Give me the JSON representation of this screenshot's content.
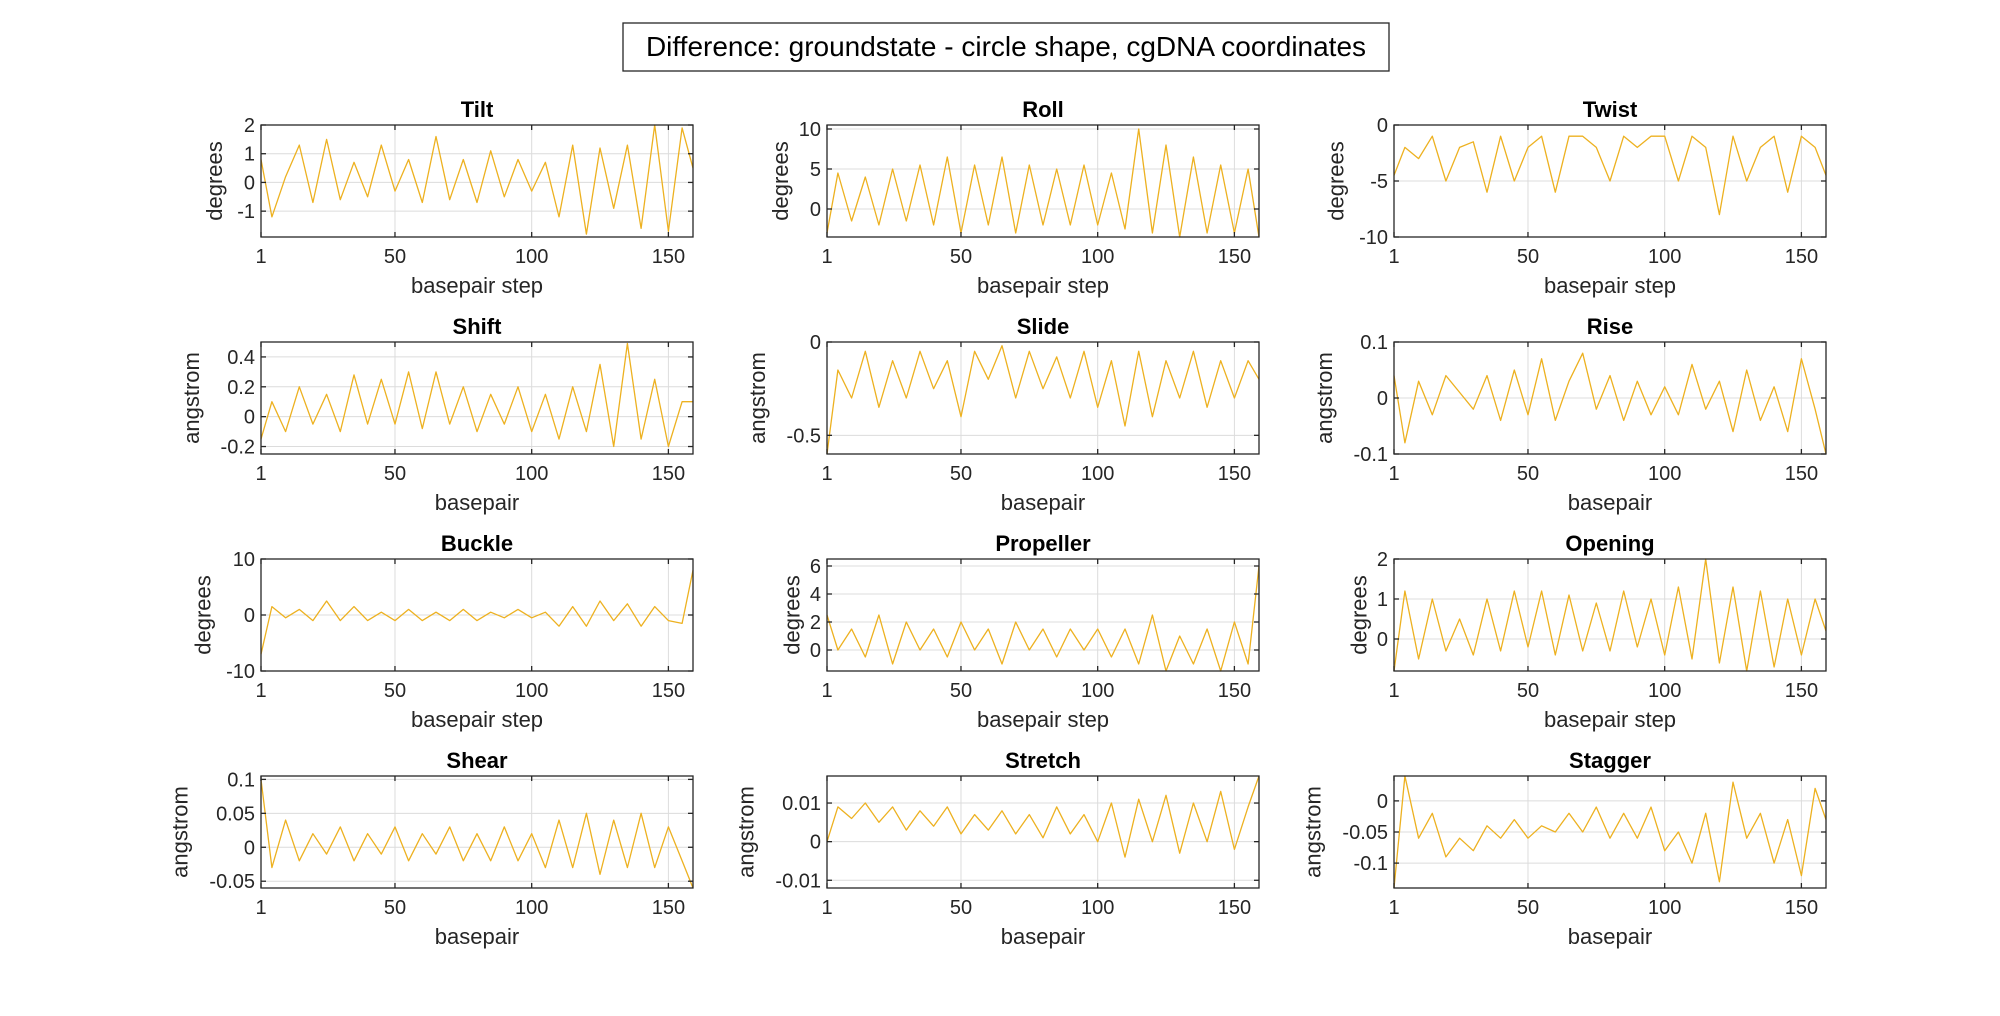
{
  "figure_title": "Difference: groundstate - circle shape, cgDNA coordinates",
  "line_color": "#EDB120",
  "chart_data": [
    {
      "type": "line",
      "title": "Tilt",
      "xlabel": "basepair step",
      "ylabel": "degrees",
      "xlim": [
        1,
        159
      ],
      "ylim": [
        -1.9,
        2
      ],
      "xticks": [
        1,
        50,
        100,
        150
      ],
      "yticks": [
        -1,
        0,
        1,
        2
      ],
      "grid": true,
      "x": [
        1,
        5,
        10,
        15,
        20,
        25,
        30,
        35,
        40,
        45,
        50,
        55,
        60,
        65,
        70,
        75,
        80,
        85,
        90,
        95,
        100,
        105,
        110,
        115,
        120,
        125,
        130,
        135,
        140,
        145,
        150,
        155,
        159
      ],
      "y": [
        0.8,
        -1.2,
        0.2,
        1.3,
        -0.7,
        1.5,
        -0.6,
        0.7,
        -0.5,
        1.3,
        -0.3,
        0.8,
        -0.7,
        1.6,
        -0.6,
        0.8,
        -0.7,
        1.1,
        -0.5,
        0.8,
        -0.3,
        0.7,
        -1.2,
        1.3,
        -1.8,
        1.2,
        -0.9,
        1.3,
        -1.6,
        2.0,
        -1.7,
        1.9,
        0.5
      ]
    },
    {
      "type": "line",
      "title": "Roll",
      "xlabel": "basepair step",
      "ylabel": "degrees",
      "xlim": [
        1,
        159
      ],
      "ylim": [
        -3.5,
        10.5
      ],
      "xticks": [
        1,
        50,
        100,
        150
      ],
      "yticks": [
        0,
        5,
        10
      ],
      "grid": true,
      "x": [
        1,
        5,
        10,
        15,
        20,
        25,
        30,
        35,
        40,
        45,
        50,
        55,
        60,
        65,
        70,
        75,
        80,
        85,
        90,
        95,
        100,
        105,
        110,
        115,
        120,
        125,
        130,
        135,
        140,
        145,
        150,
        155,
        159
      ],
      "y": [
        -3,
        4.5,
        -1.5,
        4,
        -2,
        5,
        -1.5,
        5.5,
        -2,
        6.5,
        -3,
        5.5,
        -2,
        6.5,
        -3,
        5.5,
        -2,
        5,
        -2,
        5.5,
        -2,
        4.5,
        -2.5,
        10,
        -3,
        8,
        -3.5,
        6.5,
        -3,
        5.5,
        -3,
        5,
        -3.5
      ]
    },
    {
      "type": "line",
      "title": "Twist",
      "xlabel": "basepair step",
      "ylabel": "degrees",
      "xlim": [
        1,
        159
      ],
      "ylim": [
        -10,
        0
      ],
      "xticks": [
        1,
        50,
        100,
        150
      ],
      "yticks": [
        -10,
        -5,
        0
      ],
      "grid": true,
      "x": [
        1,
        5,
        10,
        15,
        20,
        25,
        30,
        35,
        40,
        45,
        50,
        55,
        60,
        65,
        70,
        75,
        80,
        85,
        90,
        95,
        100,
        105,
        110,
        115,
        120,
        125,
        130,
        135,
        140,
        145,
        150,
        155,
        159
      ],
      "y": [
        -4.5,
        -2,
        -3,
        -1,
        -5,
        -2,
        -1.5,
        -6,
        -1,
        -5,
        -2,
        -1,
        -6,
        -1,
        -1,
        -2,
        -5,
        -1,
        -2,
        -1,
        -1,
        -5,
        -1,
        -2,
        -8,
        -1,
        -5,
        -2,
        -1,
        -6,
        -1,
        -2,
        -4.5
      ]
    },
    {
      "type": "line",
      "title": "Shift",
      "xlabel": "basepair",
      "ylabel": "angstrom",
      "xlim": [
        1,
        159
      ],
      "ylim": [
        -0.25,
        0.5
      ],
      "xticks": [
        1,
        50,
        100,
        150
      ],
      "yticks": [
        -0.2,
        0,
        0.2,
        0.4
      ],
      "grid": true,
      "x": [
        1,
        5,
        10,
        15,
        20,
        25,
        30,
        35,
        40,
        45,
        50,
        55,
        60,
        65,
        70,
        75,
        80,
        85,
        90,
        95,
        100,
        105,
        110,
        115,
        120,
        125,
        130,
        135,
        140,
        145,
        150,
        155,
        159
      ],
      "y": [
        -0.15,
        0.1,
        -0.1,
        0.2,
        -0.05,
        0.15,
        -0.1,
        0.28,
        -0.05,
        0.25,
        -0.05,
        0.3,
        -0.08,
        0.3,
        -0.05,
        0.2,
        -0.1,
        0.15,
        -0.05,
        0.2,
        -0.1,
        0.15,
        -0.15,
        0.2,
        -0.1,
        0.35,
        -0.2,
        0.49,
        -0.15,
        0.25,
        -0.2,
        0.1,
        0.1
      ]
    },
    {
      "type": "line",
      "title": "Slide",
      "xlabel": "basepair",
      "ylabel": "angstrom",
      "xlim": [
        1,
        159
      ],
      "ylim": [
        -0.6,
        0
      ],
      "xticks": [
        1,
        50,
        100,
        150
      ],
      "yticks": [
        -0.5,
        0
      ],
      "grid": true,
      "x": [
        1,
        5,
        10,
        15,
        20,
        25,
        30,
        35,
        40,
        45,
        50,
        55,
        60,
        65,
        70,
        75,
        80,
        85,
        90,
        95,
        100,
        105,
        110,
        115,
        120,
        125,
        130,
        135,
        140,
        145,
        150,
        155,
        159
      ],
      "y": [
        -0.6,
        -0.15,
        -0.3,
        -0.05,
        -0.35,
        -0.1,
        -0.3,
        -0.05,
        -0.25,
        -0.1,
        -0.4,
        -0.05,
        -0.2,
        -0.02,
        -0.3,
        -0.05,
        -0.25,
        -0.08,
        -0.3,
        -0.05,
        -0.35,
        -0.1,
        -0.45,
        -0.05,
        -0.4,
        -0.1,
        -0.3,
        -0.05,
        -0.35,
        -0.1,
        -0.3,
        -0.1,
        -0.2
      ]
    },
    {
      "type": "line",
      "title": "Rise",
      "xlabel": "basepair",
      "ylabel": "angstrom",
      "xlim": [
        1,
        159
      ],
      "ylim": [
        -0.1,
        0.1
      ],
      "xticks": [
        1,
        50,
        100,
        150
      ],
      "yticks": [
        -0.1,
        0,
        0.1
      ],
      "grid": true,
      "x": [
        1,
        5,
        10,
        15,
        20,
        25,
        30,
        35,
        40,
        45,
        50,
        55,
        60,
        65,
        70,
        75,
        80,
        85,
        90,
        95,
        100,
        105,
        110,
        115,
        120,
        125,
        130,
        135,
        140,
        145,
        150,
        155,
        159
      ],
      "y": [
        0.04,
        -0.08,
        0.03,
        -0.03,
        0.04,
        0.01,
        -0.02,
        0.04,
        -0.04,
        0.05,
        -0.03,
        0.07,
        -0.04,
        0.03,
        0.08,
        -0.02,
        0.04,
        -0.04,
        0.03,
        -0.03,
        0.02,
        -0.03,
        0.06,
        -0.02,
        0.03,
        -0.06,
        0.05,
        -0.04,
        0.02,
        -0.06,
        0.07,
        -0.02,
        -0.1
      ]
    },
    {
      "type": "line",
      "title": "Buckle",
      "xlabel": "basepair step",
      "ylabel": "degrees",
      "xlim": [
        1,
        159
      ],
      "ylim": [
        -10,
        10
      ],
      "xticks": [
        1,
        50,
        100,
        150
      ],
      "yticks": [
        -10,
        0,
        10
      ],
      "grid": true,
      "x": [
        1,
        5,
        10,
        15,
        20,
        25,
        30,
        35,
        40,
        45,
        50,
        55,
        60,
        65,
        70,
        75,
        80,
        85,
        90,
        95,
        100,
        105,
        110,
        115,
        120,
        125,
        130,
        135,
        140,
        145,
        150,
        155,
        159
      ],
      "y": [
        -7,
        1.5,
        -0.5,
        1,
        -1,
        2.5,
        -1,
        1.5,
        -1,
        0.5,
        -1,
        1,
        -1,
        0.5,
        -1,
        1,
        -1,
        0.5,
        -0.5,
        1,
        -0.5,
        0.5,
        -2,
        1.5,
        -2,
        2.5,
        -1,
        2,
        -2,
        1.5,
        -1,
        -1.5,
        8
      ]
    },
    {
      "type": "line",
      "title": "Propeller",
      "xlabel": "basepair step",
      "ylabel": "degrees",
      "xlim": [
        1,
        159
      ],
      "ylim": [
        -1.5,
        6.5
      ],
      "xticks": [
        1,
        50,
        100,
        150
      ],
      "yticks": [
        0,
        2,
        4,
        6
      ],
      "grid": true,
      "x": [
        1,
        5,
        10,
        15,
        20,
        25,
        30,
        35,
        40,
        45,
        50,
        55,
        60,
        65,
        70,
        75,
        80,
        85,
        90,
        95,
        100,
        105,
        110,
        115,
        120,
        125,
        130,
        135,
        140,
        145,
        150,
        155,
        159
      ],
      "y": [
        2.5,
        0,
        1.5,
        -0.5,
        2.5,
        -1,
        2,
        0,
        1.5,
        -0.5,
        2,
        0,
        1.5,
        -1,
        2,
        0,
        1.5,
        -0.5,
        1.5,
        0,
        1.5,
        -0.5,
        1.5,
        -1,
        2.5,
        -1.5,
        1,
        -1,
        1.5,
        -1.5,
        2,
        -1,
        6
      ]
    },
    {
      "type": "line",
      "title": "Opening",
      "xlabel": "basepair step",
      "ylabel": "degrees",
      "xlim": [
        1,
        159
      ],
      "ylim": [
        -0.8,
        2
      ],
      "xticks": [
        1,
        50,
        100,
        150
      ],
      "yticks": [
        0,
        1,
        2
      ],
      "grid": true,
      "x": [
        1,
        5,
        10,
        15,
        20,
        25,
        30,
        35,
        40,
        45,
        50,
        55,
        60,
        65,
        70,
        75,
        80,
        85,
        90,
        95,
        100,
        105,
        110,
        115,
        120,
        125,
        130,
        135,
        140,
        145,
        150,
        155,
        159
      ],
      "y": [
        -0.8,
        1.2,
        -0.5,
        1,
        -0.3,
        0.5,
        -0.4,
        1,
        -0.3,
        1.2,
        -0.2,
        1.2,
        -0.4,
        1.1,
        -0.3,
        0.9,
        -0.3,
        1.2,
        -0.2,
        1,
        -0.4,
        1.3,
        -0.5,
        2,
        -0.6,
        1.3,
        -0.8,
        1.2,
        -0.7,
        1,
        -0.4,
        1,
        0.2
      ]
    },
    {
      "type": "line",
      "title": "Shear",
      "xlabel": "basepair",
      "ylabel": "angstrom",
      "xlim": [
        1,
        159
      ],
      "ylim": [
        -0.06,
        0.105
      ],
      "xticks": [
        1,
        50,
        100,
        150
      ],
      "yticks": [
        -0.05,
        0,
        0.05,
        0.1
      ],
      "grid": true,
      "x": [
        1,
        5,
        10,
        15,
        20,
        25,
        30,
        35,
        40,
        45,
        50,
        55,
        60,
        65,
        70,
        75,
        80,
        85,
        90,
        95,
        100,
        105,
        110,
        115,
        120,
        125,
        130,
        135,
        140,
        145,
        150,
        155,
        159
      ],
      "y": [
        0.1,
        -0.03,
        0.04,
        -0.02,
        0.02,
        -0.01,
        0.03,
        -0.02,
        0.02,
        -0.01,
        0.03,
        -0.02,
        0.02,
        -0.01,
        0.03,
        -0.02,
        0.02,
        -0.02,
        0.03,
        -0.02,
        0.02,
        -0.03,
        0.04,
        -0.03,
        0.05,
        -0.04,
        0.04,
        -0.03,
        0.05,
        -0.03,
        0.03,
        -0.02,
        -0.06
      ]
    },
    {
      "type": "line",
      "title": "Stretch",
      "xlabel": "basepair",
      "ylabel": "angstrom",
      "xlim": [
        1,
        159
      ],
      "ylim": [
        -0.012,
        0.017
      ],
      "xticks": [
        1,
        50,
        100,
        150
      ],
      "yticks": [
        -0.01,
        0,
        0.01
      ],
      "grid": true,
      "x": [
        1,
        5,
        10,
        15,
        20,
        25,
        30,
        35,
        40,
        45,
        50,
        55,
        60,
        65,
        70,
        75,
        80,
        85,
        90,
        95,
        100,
        105,
        110,
        115,
        120,
        125,
        130,
        135,
        140,
        145,
        150,
        155,
        159
      ],
      "y": [
        0,
        0.009,
        0.006,
        0.01,
        0.005,
        0.009,
        0.003,
        0.008,
        0.004,
        0.009,
        0.002,
        0.007,
        0.003,
        0.008,
        0.002,
        0.007,
        0.001,
        0.009,
        0.002,
        0.007,
        0,
        0.01,
        -0.004,
        0.011,
        0,
        0.012,
        -0.003,
        0.01,
        0,
        0.013,
        -0.002,
        0.009,
        0.017
      ]
    },
    {
      "type": "line",
      "title": "Stagger",
      "xlabel": "basepair",
      "ylabel": "angstrom",
      "xlim": [
        1,
        159
      ],
      "ylim": [
        -0.14,
        0.04
      ],
      "xticks": [
        1,
        50,
        100,
        150
      ],
      "yticks": [
        -0.1,
        -0.05,
        0
      ],
      "grid": true,
      "x": [
        1,
        5,
        10,
        15,
        20,
        25,
        30,
        35,
        40,
        45,
        50,
        55,
        60,
        65,
        70,
        75,
        80,
        85,
        90,
        95,
        100,
        105,
        110,
        115,
        120,
        125,
        130,
        135,
        140,
        145,
        150,
        155,
        159
      ],
      "y": [
        -0.14,
        0.04,
        -0.06,
        -0.02,
        -0.09,
        -0.06,
        -0.08,
        -0.04,
        -0.06,
        -0.03,
        -0.06,
        -0.04,
        -0.05,
        -0.02,
        -0.05,
        -0.01,
        -0.06,
        -0.02,
        -0.06,
        -0.01,
        -0.08,
        -0.05,
        -0.1,
        -0.02,
        -0.13,
        0.03,
        -0.06,
        -0.02,
        -0.1,
        -0.03,
        -0.12,
        0.02,
        -0.03
      ]
    }
  ]
}
